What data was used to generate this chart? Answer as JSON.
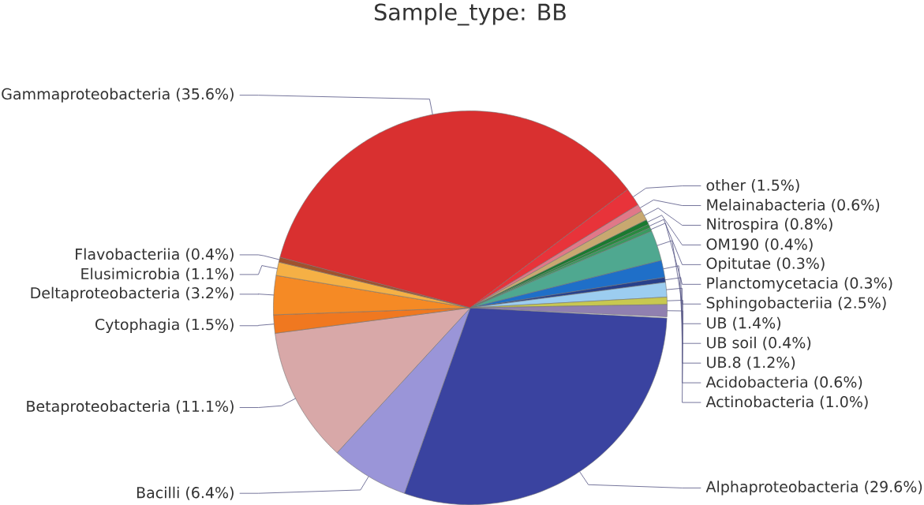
{
  "chart_data": {
    "type": "pie",
    "title": "Sample_type: BB",
    "categories": [
      "Alphaproteobacteria",
      "Bacilli",
      "Betaproteobacteria",
      "Cytophagia",
      "Deltaproteobacteria",
      "Elusimicrobia",
      "Flavobacteriia",
      "Gammaproteobacteria",
      "other",
      "Melainabacteria",
      "Nitrospira",
      "OM190",
      "Opitutae",
      "Planctomycetacia",
      "Sphingobacteriia",
      "UB",
      "UB soil",
      "UB.8",
      "Acidobacteria",
      "Actinobacteria"
    ],
    "values": [
      29.6,
      6.4,
      11.1,
      1.5,
      3.2,
      1.1,
      0.4,
      35.6,
      1.5,
      0.6,
      0.8,
      0.4,
      0.3,
      0.3,
      2.5,
      1.4,
      0.4,
      1.2,
      0.6,
      1.0
    ],
    "value_labels": [
      "(29.6%)",
      "(6.4%)",
      "(11.1%)",
      "(1.5%)",
      "(3.2%)",
      "(1.1%)",
      "(0.4%)",
      "(35.6%)",
      "(1.5%)",
      "(0.6%)",
      "(0.8%)",
      "(0.4%)",
      "(0.3%)",
      "(0.3%)",
      "(2.5%)",
      "(1.4%)",
      "(0.4%)",
      "(1.2%)",
      "(0.6%)",
      "(1.0%)"
    ],
    "colors": [
      "#3a43a0",
      "#9a95d8",
      "#d8a8a8",
      "#f07820",
      "#f58a25",
      "#f5b045",
      "#a0522d",
      "#d93030",
      "#e8333a",
      "#e07888",
      "#c8a870",
      "#1a7a30",
      "#2a8a40",
      "#3a9a60",
      "#4fa890",
      "#1f6fc8",
      "#27408b",
      "#9ccdf0",
      "#c8c850",
      "#9080b0"
    ]
  }
}
